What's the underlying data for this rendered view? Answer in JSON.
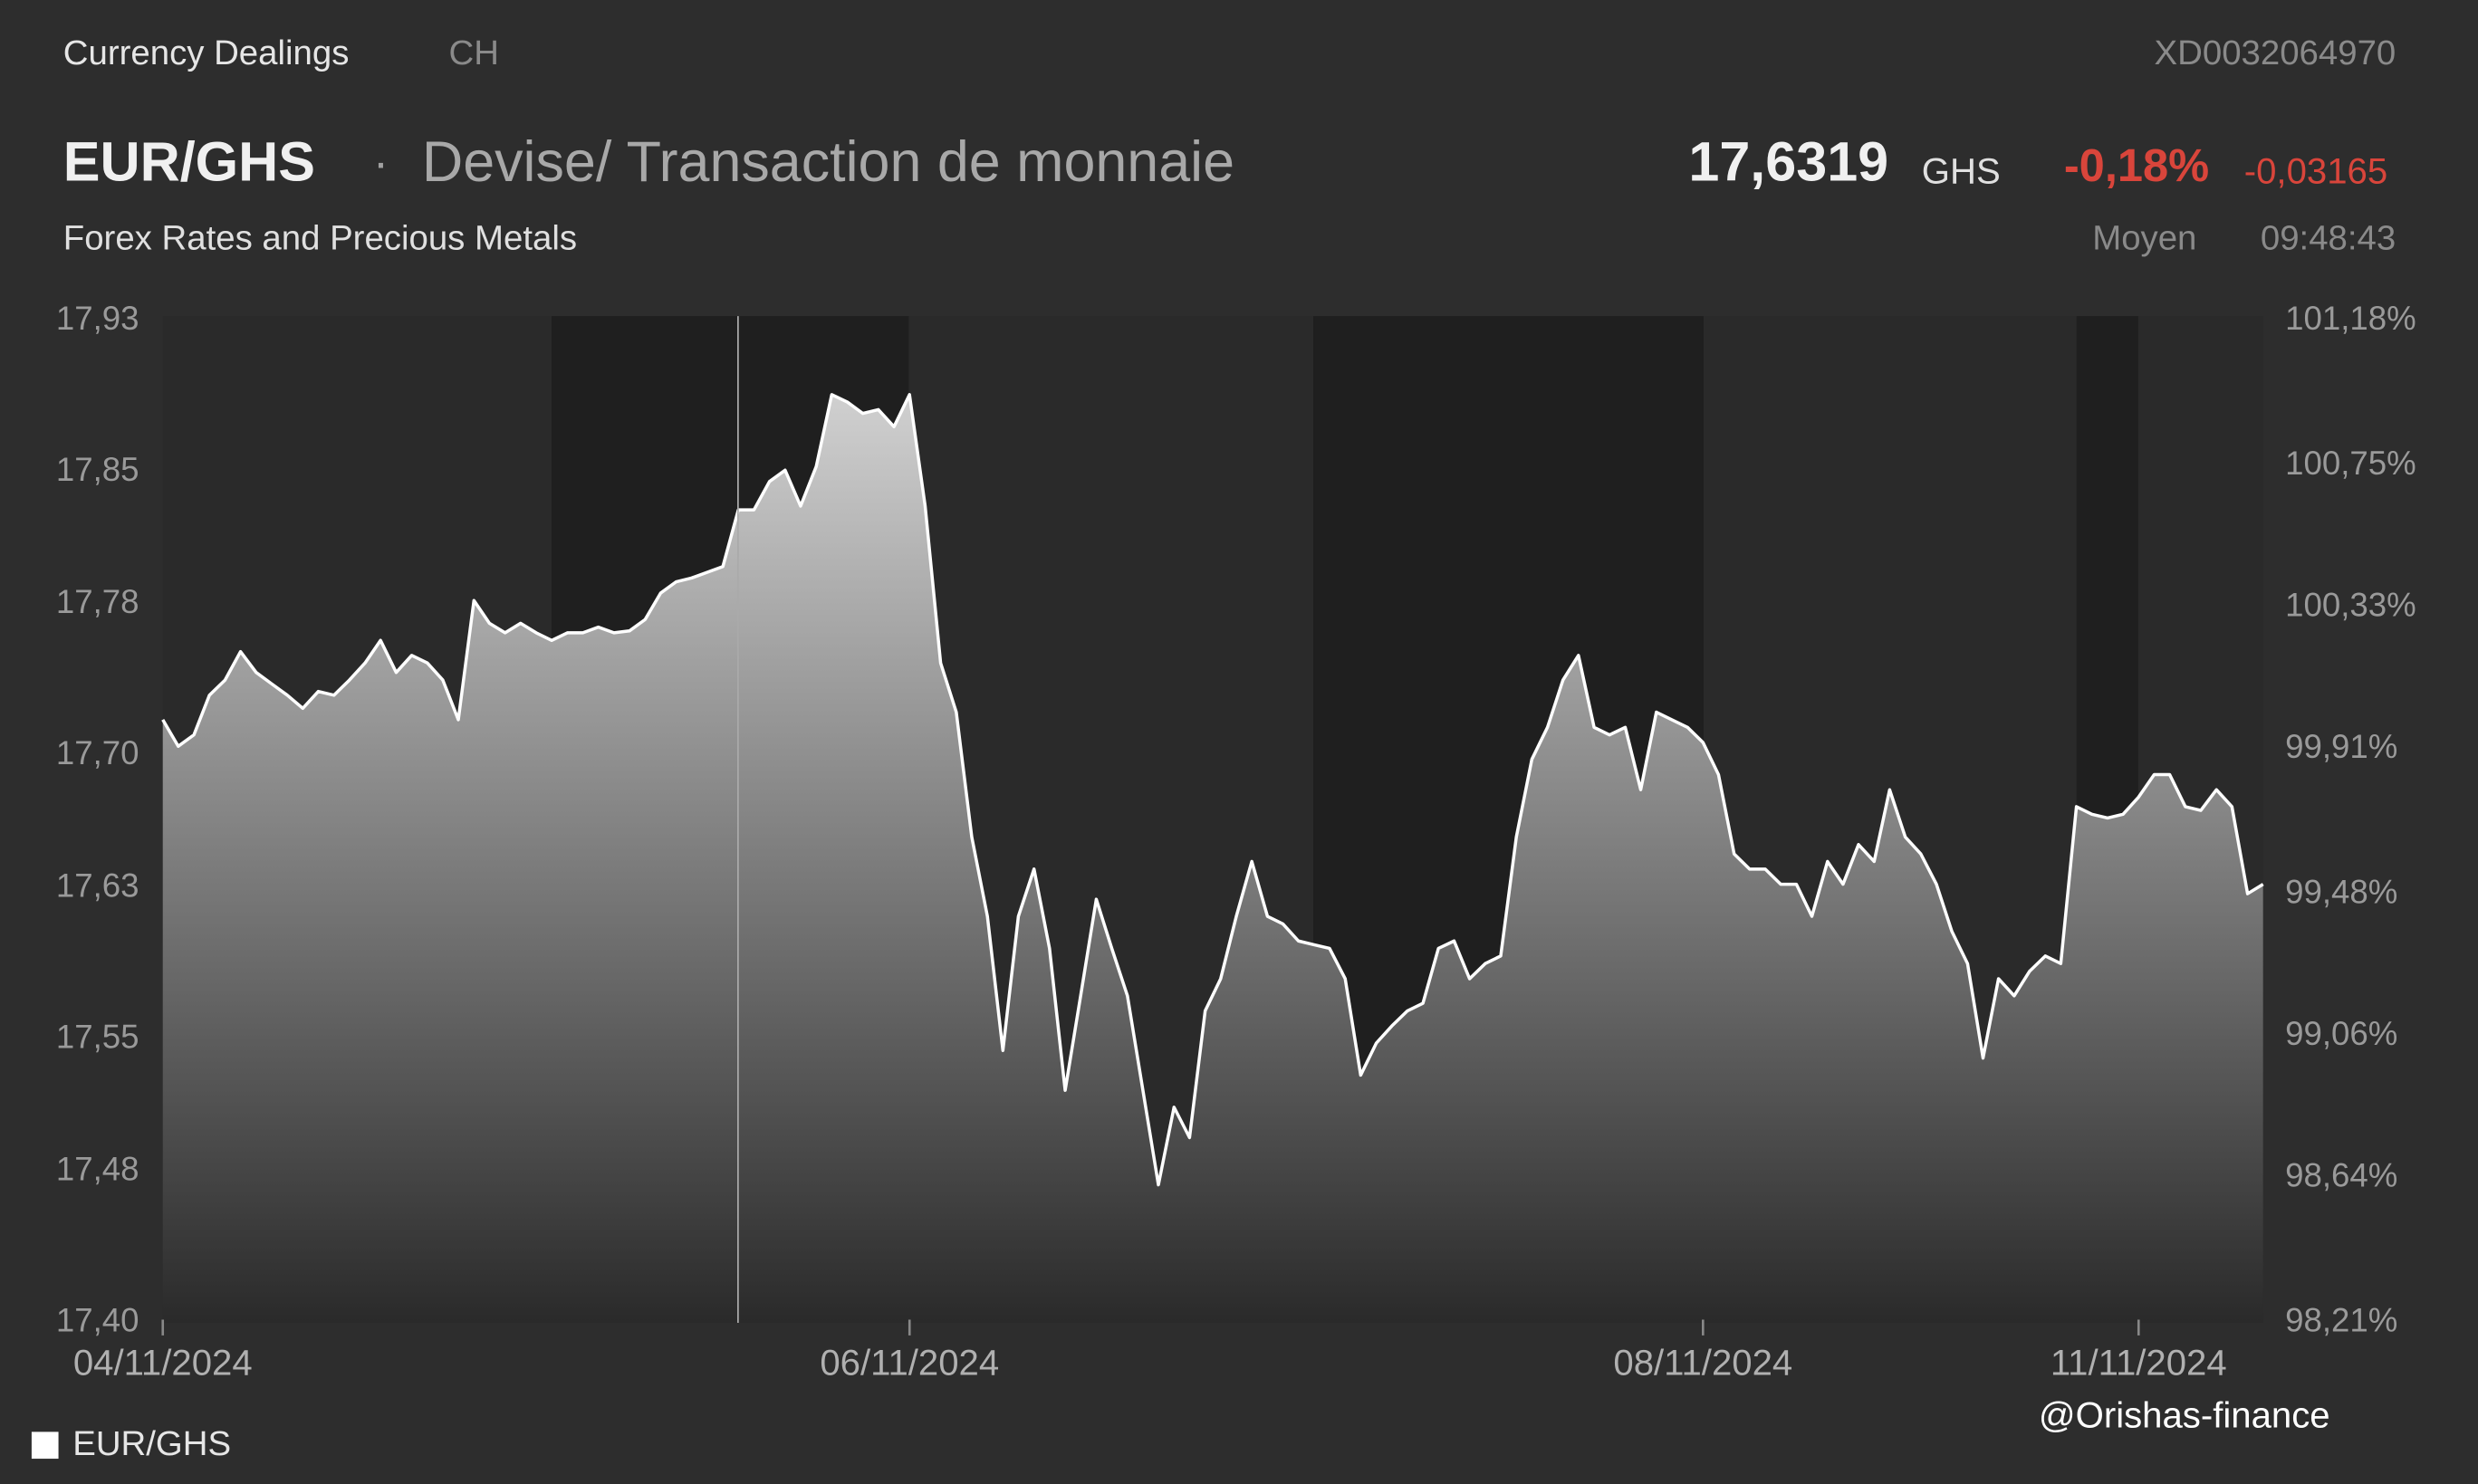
{
  "header": {
    "section": "Currency Dealings",
    "market": "CH",
    "isin": "XD0032064970",
    "symbol": "EUR/GHS",
    "separator": "·",
    "name": "Devise/ Transaction de monnaie",
    "subtitle": "Forex Rates and Precious Metals",
    "price": "17,6319",
    "currency": "GHS",
    "change_pct": "-0,18%",
    "change_abs": "-0,03165",
    "price_type": "Moyen",
    "time": "09:48:43"
  },
  "watermark": "@Orishas-finance",
  "chart_data": {
    "type": "area",
    "series": [
      {
        "name": "EUR/GHS",
        "color": "#ffffff",
        "values": [
          17.719,
          17.705,
          17.711,
          17.732,
          17.74,
          17.755,
          17.744,
          17.738,
          17.732,
          17.725,
          17.734,
          17.732,
          17.74,
          17.749,
          17.761,
          17.744,
          17.753,
          17.749,
          17.74,
          17.719,
          17.782,
          17.77,
          17.765,
          17.77,
          17.765,
          17.761,
          17.765,
          17.765,
          17.768,
          17.765,
          17.766,
          17.772,
          17.786,
          17.792,
          17.794,
          17.797,
          17.8,
          17.83,
          17.83,
          17.845,
          17.851,
          17.832,
          17.853,
          17.891,
          17.887,
          17.881,
          17.883,
          17.874,
          17.891,
          17.832,
          17.749,
          17.723,
          17.657,
          17.615,
          17.544,
          17.615,
          17.64,
          17.598,
          17.523,
          17.573,
          17.624,
          17.598,
          17.573,
          17.523,
          17.473,
          17.514,
          17.498,
          17.565,
          17.582,
          17.615,
          17.644,
          17.615,
          17.611,
          17.602,
          17.6,
          17.598,
          17.582,
          17.531,
          17.548,
          17.557,
          17.565,
          17.569,
          17.598,
          17.602,
          17.582,
          17.59,
          17.594,
          17.657,
          17.698,
          17.715,
          17.74,
          17.753,
          17.715,
          17.711,
          17.715,
          17.682,
          17.723,
          17.719,
          17.715,
          17.707,
          17.69,
          17.648,
          17.64,
          17.64,
          17.632,
          17.632,
          17.615,
          17.644,
          17.632,
          17.653,
          17.644,
          17.682,
          17.657,
          17.648,
          17.632,
          17.607,
          17.59,
          17.54,
          17.582,
          17.573,
          17.586,
          17.594,
          17.59,
          17.673,
          17.669,
          17.667,
          17.669,
          17.678,
          17.69,
          17.69,
          17.673,
          17.671,
          17.682,
          17.673,
          17.627,
          17.632
        ]
      }
    ],
    "xlim": [
      0,
      135
    ],
    "xticks": [
      {
        "value": 0,
        "label": "04/11/2024"
      },
      {
        "value": 48,
        "label": "06/11/2024"
      },
      {
        "value": 99,
        "label": "08/11/2024"
      },
      {
        "value": 127,
        "label": "11/11/2024"
      }
    ],
    "ylim": [
      17.4,
      17.93
    ],
    "yticks": [
      {
        "value": 17.93,
        "label": "17,93"
      },
      {
        "value": 17.85,
        "label": "17,85"
      },
      {
        "value": 17.78,
        "label": "17,78"
      },
      {
        "value": 17.7,
        "label": "17,70"
      },
      {
        "value": 17.63,
        "label": "17,63"
      },
      {
        "value": 17.55,
        "label": "17,55"
      },
      {
        "value": 17.48,
        "label": "17,48"
      },
      {
        "value": 17.4,
        "label": "17,40"
      }
    ],
    "y2lim": [
      98.21,
      101.18
    ],
    "y2ticks": [
      {
        "value": 101.18,
        "label": "101,18%"
      },
      {
        "value": 100.75,
        "label": "100,75%"
      },
      {
        "value": 100.33,
        "label": "100,33%"
      },
      {
        "value": 99.91,
        "label": "99,91%"
      },
      {
        "value": 99.48,
        "label": "99,48%"
      },
      {
        "value": 99.06,
        "label": "99,06%"
      },
      {
        "value": 98.64,
        "label": "98,64%"
      },
      {
        "value": 98.21,
        "label": "98,21%"
      }
    ]
  }
}
